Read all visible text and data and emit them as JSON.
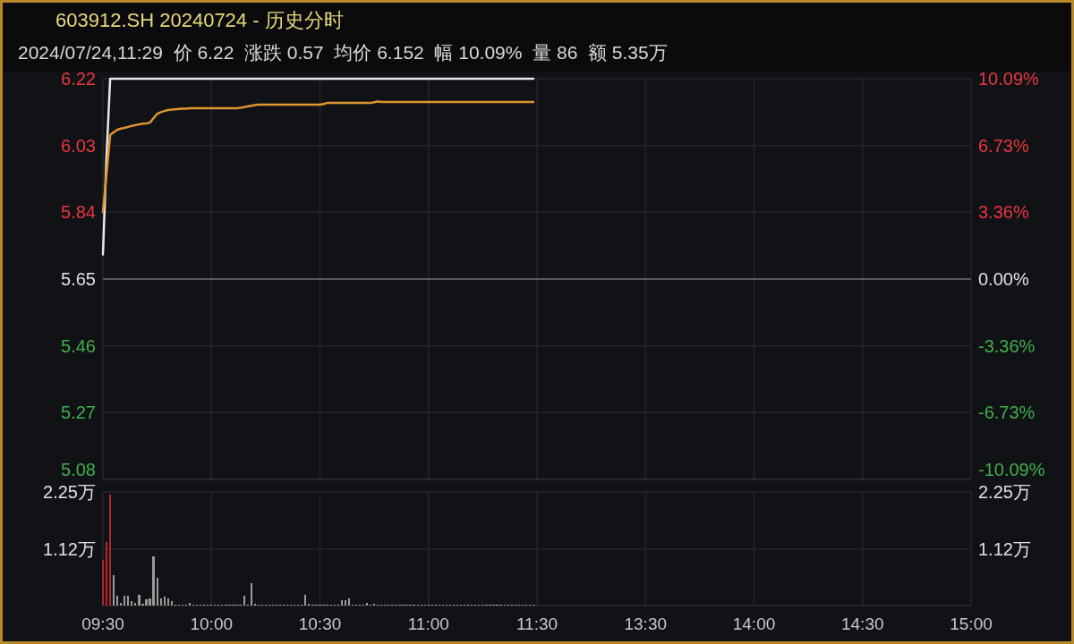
{
  "chart_data": [
    {
      "type": "line",
      "title": "603912.SH 20240724 - 历史分时",
      "subtitle": "2024/07/24,11:29  价 6.22  涨跌 0.57  均价 6.152  幅 10.09%  量 86  额 5.35万",
      "categories": [
        null,
        null,
        null,
        null,
        null,
        null,
        null,
        null,
        null,
        null,
        null,
        null,
        null,
        null,
        null,
        null,
        null,
        null,
        null,
        null,
        null,
        null,
        null,
        null,
        null,
        null,
        null,
        null,
        null,
        null,
        null,
        null,
        null,
        null,
        null,
        null,
        null,
        null,
        null,
        null,
        null,
        null,
        null,
        null,
        null,
        null,
        null,
        null,
        null,
        null,
        null,
        null,
        null,
        null,
        null,
        null,
        null,
        null,
        null,
        null,
        null,
        null,
        null,
        null,
        null,
        null,
        null,
        null,
        null,
        null,
        null,
        null,
        null,
        null,
        null,
        null,
        null,
        null,
        null,
        null,
        null,
        null,
        null,
        null,
        null,
        null,
        null,
        null,
        null,
        null,
        null,
        null,
        null,
        null,
        null,
        null,
        null,
        null,
        null,
        null,
        null,
        null,
        null,
        null,
        null,
        null,
        null,
        null,
        null,
        null,
        null,
        null,
        null,
        null,
        null,
        null,
        null,
        null,
        null,
        null,
        null,
        null,
        null,
        null,
        null,
        null,
        null,
        null,
        null,
        null,
        null,
        null,
        null,
        null,
        null,
        null,
        null,
        null,
        null,
        null,
        null,
        null,
        null,
        null,
        null,
        null,
        null,
        null,
        null,
        null,
        null,
        null,
        null,
        null,
        null,
        null,
        null,
        null,
        null,
        null,
        null,
        null,
        null,
        null,
        null,
        null,
        null,
        null,
        null,
        null,
        null,
        null,
        null,
        null,
        null,
        null,
        null,
        null,
        null,
        null,
        null,
        null,
        null,
        null,
        null,
        null,
        null,
        null,
        null,
        null,
        null,
        null,
        null,
        null,
        null,
        null,
        null,
        null,
        null,
        null,
        null,
        null,
        null,
        null,
        null,
        null,
        null,
        null,
        null,
        null,
        null,
        null,
        null,
        null,
        null,
        null,
        null,
        null,
        null,
        null,
        null,
        null,
        null,
        null,
        null,
        null,
        null,
        null,
        null,
        null,
        null,
        null,
        null,
        null,
        null,
        null,
        null,
        null,
        null,
        null,
        null
      ],
      "ylim": [
        5.08,
        6.22
      ],
      "yticks": [
        5.08,
        5.27,
        5.46,
        5.65,
        5.84,
        6.03,
        6.22
      ],
      "y2lim": [
        -10.09,
        10.09
      ],
      "y2ticks": [
        {
          "value": -10.09,
          "label": "-10.09%"
        },
        {
          "value": -6.73,
          "label": "-6.73%"
        },
        {
          "value": -3.36,
          "label": "-3.36%"
        },
        {
          "value": 0,
          "label": "0.00%"
        },
        {
          "value": 3.36,
          "label": "3.36%"
        },
        {
          "value": 6.73,
          "label": "6.73%"
        },
        {
          "value": 10.09,
          "label": "10.09%"
        }
      ],
      "tick_labels": "y",
      "grid": true,
      "marker": "none",
      "line_style": "solid",
      "ref_lines": [
        {
          "axis": "y",
          "value": 5.65,
          "color": "#5a5a5e"
        }
      ],
      "series": [
        {
          "color": "#e8e8ee",
          "values": [
            5.72,
            6.0,
            6.22,
            6.22,
            6.22,
            6.22,
            6.22,
            6.22,
            6.22,
            6.22,
            6.22,
            6.22,
            6.22,
            6.22,
            6.22,
            6.22,
            6.22,
            6.22,
            6.22,
            6.22,
            6.22,
            6.22,
            6.22,
            6.22,
            6.22,
            6.22,
            6.22,
            6.22,
            6.22,
            6.22,
            6.22,
            6.22,
            6.22,
            6.22,
            6.22,
            6.22,
            6.22,
            6.22,
            6.22,
            6.22,
            6.22,
            6.22,
            6.22,
            6.22,
            6.22,
            6.22,
            6.22,
            6.22,
            6.22,
            6.22,
            6.22,
            6.22,
            6.22,
            6.22,
            6.22,
            6.22,
            6.22,
            6.22,
            6.22,
            6.22,
            6.22,
            6.22,
            6.22,
            6.22,
            6.22,
            6.22,
            6.22,
            6.22,
            6.22,
            6.22,
            6.22,
            6.22,
            6.22,
            6.22,
            6.22,
            6.22,
            6.22,
            6.22,
            6.22,
            6.22,
            6.22,
            6.22,
            6.22,
            6.22,
            6.22,
            6.22,
            6.22,
            6.22,
            6.22,
            6.22,
            6.22,
            6.22,
            6.22,
            6.22,
            6.22,
            6.22,
            6.22,
            6.22,
            6.22,
            6.22,
            6.22,
            6.22,
            6.22,
            6.22,
            6.22,
            6.22,
            6.22,
            6.22,
            6.22,
            6.22,
            6.22,
            6.22,
            6.22,
            6.22,
            6.22,
            6.22,
            6.22,
            6.22,
            6.22,
            6.22,
            null,
            null,
            null,
            null,
            null,
            null,
            null,
            null,
            null,
            null,
            null,
            null,
            null,
            null,
            null,
            null,
            null,
            null,
            null,
            null,
            null,
            null,
            null,
            null,
            null,
            null,
            null,
            null,
            null,
            null,
            null,
            null,
            null,
            null,
            null,
            null,
            null,
            null,
            null,
            null,
            null,
            null,
            null,
            null,
            null,
            null,
            null,
            null,
            null,
            null,
            null,
            null,
            null,
            null,
            null,
            null,
            null,
            null,
            null,
            null,
            null,
            null,
            null,
            null,
            null,
            null,
            null,
            null,
            null,
            null,
            null,
            null,
            null,
            null,
            null,
            null,
            null,
            null,
            null,
            null,
            null,
            null,
            null,
            null,
            null,
            null,
            null,
            null,
            null,
            null,
            null,
            null,
            null,
            null,
            null,
            null,
            null,
            null,
            null,
            null,
            null,
            null,
            null,
            null,
            null,
            null,
            null,
            null,
            null,
            null,
            null,
            null,
            null,
            null,
            null,
            null,
            null,
            null,
            null,
            null,
            null
          ]
        },
        {
          "color": "#e0962e",
          "values": [
            5.84,
            5.95,
            6.06,
            6.068,
            6.075,
            6.078,
            6.08,
            6.083,
            6.086,
            6.088,
            6.09,
            6.092,
            6.093,
            6.095,
            6.108,
            6.12,
            6.125,
            6.128,
            6.131,
            6.132,
            6.133,
            6.134,
            6.135,
            6.135,
            6.136,
            6.136,
            6.136,
            6.136,
            6.136,
            6.136,
            6.136,
            6.136,
            6.136,
            6.136,
            6.136,
            6.136,
            6.136,
            6.136,
            6.137,
            6.139,
            6.141,
            6.143,
            6.145,
            6.146,
            6.146,
            6.146,
            6.146,
            6.146,
            6.146,
            6.146,
            6.146,
            6.146,
            6.146,
            6.146,
            6.146,
            6.146,
            6.146,
            6.146,
            6.146,
            6.146,
            6.146,
            6.148,
            6.151,
            6.151,
            6.151,
            6.151,
            6.151,
            6.151,
            6.151,
            6.151,
            6.151,
            6.151,
            6.151,
            6.151,
            6.151,
            6.153,
            6.155,
            6.154,
            6.154,
            6.154,
            6.154,
            6.154,
            6.154,
            6.154,
            6.154,
            6.154,
            6.154,
            6.154,
            6.154,
            6.154,
            6.154,
            6.154,
            6.154,
            6.154,
            6.154,
            6.154,
            6.154,
            6.154,
            6.154,
            6.154,
            6.154,
            6.154,
            6.154,
            6.154,
            6.154,
            6.154,
            6.154,
            6.154,
            6.154,
            6.154,
            6.154,
            6.154,
            6.154,
            6.154,
            6.154,
            6.154,
            6.154,
            6.154,
            6.154,
            6.154,
            null,
            null,
            null,
            null,
            null,
            null,
            null,
            null,
            null,
            null,
            null,
            null,
            null,
            null,
            null,
            null,
            null,
            null,
            null,
            null,
            null,
            null,
            null,
            null,
            null,
            null,
            null,
            null,
            null,
            null,
            null,
            null,
            null,
            null,
            null,
            null,
            null,
            null,
            null,
            null,
            null,
            null,
            null,
            null,
            null,
            null,
            null,
            null,
            null,
            null,
            null,
            null,
            null,
            null,
            null,
            null,
            null,
            null,
            null,
            null,
            null,
            null,
            null,
            null,
            null,
            null,
            null,
            null,
            null,
            null,
            null,
            null,
            null,
            null,
            null,
            null,
            null,
            null,
            null,
            null,
            null,
            null,
            null,
            null,
            null,
            null,
            null,
            null,
            null,
            null,
            null,
            null,
            null,
            null,
            null,
            null,
            null,
            null,
            null,
            null,
            null,
            null,
            null,
            null,
            null,
            null,
            null,
            null,
            null,
            null,
            null,
            null,
            null,
            null,
            null,
            null,
            null,
            null,
            null,
            null,
            null
          ]
        }
      ]
    },
    {
      "type": "bar",
      "categories": [
        "09:30",
        null,
        null,
        null,
        null,
        null,
        null,
        null,
        null,
        null,
        null,
        null,
        null,
        null,
        null,
        null,
        null,
        null,
        null,
        null,
        null,
        null,
        null,
        null,
        null,
        null,
        null,
        null,
        null,
        null,
        "10:00",
        null,
        null,
        null,
        null,
        null,
        null,
        null,
        null,
        null,
        null,
        null,
        null,
        null,
        null,
        null,
        null,
        null,
        null,
        null,
        null,
        null,
        null,
        null,
        null,
        null,
        null,
        null,
        null,
        null,
        "10:30",
        null,
        null,
        null,
        null,
        null,
        null,
        null,
        null,
        null,
        null,
        null,
        null,
        null,
        null,
        null,
        null,
        null,
        null,
        null,
        null,
        null,
        null,
        null,
        null,
        null,
        null,
        null,
        null,
        null,
        "11:00",
        null,
        null,
        null,
        null,
        null,
        null,
        null,
        null,
        null,
        null,
        null,
        null,
        null,
        null,
        null,
        null,
        null,
        null,
        null,
        null,
        null,
        null,
        null,
        null,
        null,
        null,
        null,
        null,
        null,
        "11:30",
        null,
        null,
        null,
        null,
        null,
        null,
        null,
        null,
        null,
        null,
        null,
        null,
        null,
        null,
        null,
        null,
        null,
        null,
        null,
        null,
        null,
        null,
        null,
        null,
        null,
        null,
        null,
        null,
        null,
        "13:30",
        null,
        null,
        null,
        null,
        null,
        null,
        null,
        null,
        null,
        null,
        null,
        null,
        null,
        null,
        null,
        null,
        null,
        null,
        null,
        null,
        null,
        null,
        null,
        null,
        null,
        null,
        null,
        null,
        null,
        "14:00",
        null,
        null,
        null,
        null,
        null,
        null,
        null,
        null,
        null,
        null,
        null,
        null,
        null,
        null,
        null,
        null,
        null,
        null,
        null,
        null,
        null,
        null,
        null,
        null,
        null,
        null,
        null,
        null,
        null,
        "14:30",
        null,
        null,
        null,
        null,
        null,
        null,
        null,
        null,
        null,
        null,
        null,
        null,
        null,
        null,
        null,
        null,
        null,
        null,
        null,
        null,
        null,
        null,
        null,
        null,
        null,
        null,
        null,
        null,
        null,
        "15:00"
      ],
      "ylim": [
        0,
        2.25
      ],
      "yticks": [
        {
          "value": 1.12,
          "label": "1.12万"
        },
        {
          "value": 2.25,
          "label": "2.25万"
        }
      ],
      "y2lim": [
        0,
        2.25
      ],
      "y2ticks": [
        {
          "value": 1.12,
          "label": "1.12万"
        },
        {
          "value": 2.25,
          "label": "2.25万"
        }
      ],
      "grid": true,
      "values": [
        0.9,
        1.25,
        2.2,
        0.6,
        0.19,
        0.06,
        0.19,
        0.2,
        0.08,
        0.06,
        0.22,
        0.03,
        0.12,
        0.15,
        0.97,
        0.55,
        0.15,
        0.18,
        0.15,
        0.09,
        0.02,
        0.02,
        0.02,
        0.02,
        0.06,
        0.02,
        0.02,
        0.02,
        0.02,
        0.02,
        0.02,
        0.02,
        0.02,
        0.02,
        0.02,
        0.02,
        0.02,
        0.02,
        0.02,
        0.19,
        0.02,
        0.44,
        0.03,
        0.02,
        0.02,
        0.02,
        0.02,
        0.02,
        0.02,
        0.02,
        0.02,
        0.02,
        0.02,
        0.02,
        0.02,
        0.02,
        0.22,
        0.03,
        0.02,
        0.02,
        0.02,
        0.02,
        0.02,
        0.02,
        0.02,
        0.02,
        0.1,
        0.1,
        0.14,
        0.02,
        0.02,
        0.02,
        0.02,
        0.06,
        0.02,
        0.04,
        0.02,
        0.02,
        0.02,
        0.02,
        0.02,
        0.02,
        0.02,
        0.02,
        0.02,
        0.02,
        0.02,
        0.02,
        0.02,
        0.02,
        0.02,
        0.02,
        0.02,
        0.02,
        0.02,
        0.02,
        0.02,
        0.02,
        0.02,
        0.02,
        0.02,
        0.02,
        0.02,
        0.02,
        0.02,
        0.02,
        0.02,
        0.02,
        0.02,
        0.02,
        0.02,
        0.02,
        0.02,
        0.02,
        0.02,
        0.02,
        0.02,
        0.02,
        0.02,
        0.02,
        null,
        null,
        null,
        null,
        null,
        null,
        null,
        null,
        null,
        null,
        null,
        null,
        null,
        null,
        null,
        null,
        null,
        null,
        null,
        null,
        null,
        null,
        null,
        null,
        null,
        null,
        null,
        null,
        null,
        null,
        null,
        null,
        null,
        null,
        null,
        null,
        null,
        null,
        null,
        null,
        null,
        null,
        null,
        null,
        null,
        null,
        null,
        null,
        null,
        null,
        null,
        null,
        null,
        null,
        null,
        null,
        null,
        null,
        null,
        null,
        null,
        null,
        null,
        null,
        null,
        null,
        null,
        null,
        null,
        null,
        null,
        null,
        null,
        null,
        null,
        null,
        null,
        null,
        null,
        null,
        null,
        null,
        null,
        null,
        null,
        null,
        null,
        null,
        null,
        null,
        null,
        null,
        null,
        null,
        null,
        null,
        null,
        null,
        null,
        null,
        null,
        null,
        null,
        null,
        null,
        null,
        null,
        null,
        null,
        null,
        null,
        null,
        null,
        null,
        null,
        null,
        null,
        null,
        null,
        null,
        null
      ],
      "colors": [
        "#b3242c",
        "#b3242c",
        "#b3242c",
        "#9a9a9a",
        "#9a9a9a",
        "#9a9a9a",
        "#9a9a9a",
        "#9a9a9a",
        "#9a9a9a",
        "#9a9a9a",
        "#9a9a9a",
        "#9a9a9a",
        "#9a9a9a",
        "#9a9a9a",
        "#9a9a9a",
        "#9a9a9a",
        "#9a9a9a",
        "#9a9a9a",
        "#9a9a9a",
        "#9a9a9a",
        "#9a9a9a",
        "#9a9a9a",
        "#9a9a9a",
        "#9a9a9a",
        "#9a9a9a",
        "#9a9a9a",
        "#9a9a9a",
        "#9a9a9a",
        "#9a9a9a",
        "#9a9a9a",
        "#9a9a9a",
        "#9a9a9a",
        "#9a9a9a",
        "#9a9a9a",
        "#9a9a9a",
        "#9a9a9a",
        "#9a9a9a",
        "#9a9a9a",
        "#9a9a9a",
        "#9a9a9a",
        "#9a9a9a",
        "#9a9a9a",
        "#9a9a9a",
        "#9a9a9a",
        "#9a9a9a",
        "#9a9a9a",
        "#9a9a9a",
        "#9a9a9a",
        "#9a9a9a",
        "#9a9a9a",
        "#9a9a9a",
        "#9a9a9a",
        "#9a9a9a",
        "#9a9a9a",
        "#9a9a9a",
        "#9a9a9a",
        "#9a9a9a",
        "#9a9a9a",
        "#9a9a9a",
        "#9a9a9a",
        "#9a9a9a",
        "#9a9a9a",
        "#9a9a9a",
        "#9a9a9a",
        "#9a9a9a",
        "#9a9a9a",
        "#9a9a9a",
        "#9a9a9a",
        "#9a9a9a",
        "#9a9a9a",
        "#9a9a9a",
        "#9a9a9a",
        "#9a9a9a",
        "#9a9a9a",
        "#9a9a9a",
        "#9a9a9a",
        "#9a9a9a",
        "#9a9a9a",
        "#9a9a9a",
        "#9a9a9a",
        "#9a9a9a",
        "#9a9a9a",
        "#9a9a9a",
        "#9a9a9a",
        "#9a9a9a",
        "#9a9a9a",
        "#9a9a9a",
        "#9a9a9a",
        "#9a9a9a",
        "#9a9a9a",
        "#9a9a9a",
        "#9a9a9a",
        "#9a9a9a",
        "#9a9a9a",
        "#9a9a9a",
        "#9a9a9a",
        "#9a9a9a",
        "#9a9a9a",
        "#9a9a9a",
        "#9a9a9a",
        "#9a9a9a",
        "#9a9a9a",
        "#9a9a9a",
        "#9a9a9a",
        "#9a9a9a",
        "#9a9a9a",
        "#9a9a9a",
        "#9a9a9a",
        "#9a9a9a",
        "#9a9a9a",
        "#9a9a9a",
        "#9a9a9a",
        "#9a9a9a",
        "#9a9a9a",
        "#9a9a9a",
        "#9a9a9a",
        "#9a9a9a",
        "#9a9a9a",
        "#9a9a9a",
        "#9a9a9a",
        null,
        null,
        null,
        null,
        null,
        null,
        null,
        null,
        null,
        null,
        null,
        null,
        null,
        null,
        null,
        null,
        null,
        null,
        null,
        null,
        null,
        null,
        null,
        null,
        null,
        null,
        null,
        null,
        null,
        null,
        null,
        null,
        null,
        null,
        null,
        null,
        null,
        null,
        null,
        null,
        null,
        null,
        null,
        null,
        null,
        null,
        null,
        null,
        null,
        null,
        null,
        null,
        null,
        null,
        null,
        null,
        null,
        null,
        null,
        null,
        null,
        null,
        null,
        null,
        null,
        null,
        null,
        null,
        null,
        null,
        null,
        null,
        null,
        null,
        null,
        null,
        null,
        null,
        null,
        null,
        null,
        null,
        null,
        null,
        null,
        null,
        null,
        null,
        null,
        null,
        null,
        null,
        null,
        null,
        null,
        null,
        null,
        null,
        null,
        null,
        null,
        null,
        null,
        null,
        null,
        null,
        null,
        null,
        null,
        null,
        null,
        null,
        null,
        null,
        null,
        null,
        null,
        null,
        null,
        null,
        null
      ]
    }
  ]
}
